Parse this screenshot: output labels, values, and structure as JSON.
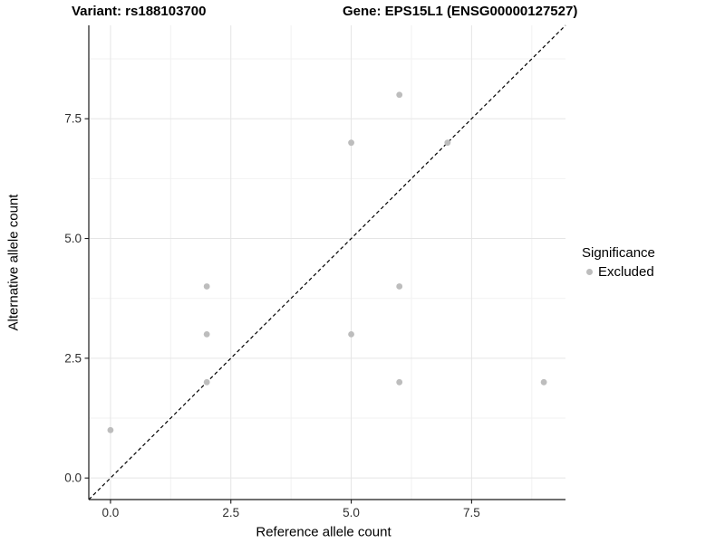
{
  "titles": {
    "variant": "Variant: rs188103700",
    "gene": "Gene: EPS15L1 (ENSG00000127527)"
  },
  "axes": {
    "x_label": "Reference allele count",
    "y_label": "Alternative allele count",
    "x_tick_labels": [
      "0.0",
      "2.5",
      "5.0",
      "7.5"
    ],
    "y_tick_labels": [
      "0.0",
      "2.5",
      "5.0",
      "7.5"
    ]
  },
  "legend": {
    "title": "Significance",
    "items": [
      {
        "label": "Excluded",
        "color": "#bdbdbd"
      }
    ]
  },
  "chart_data": {
    "type": "scatter",
    "title": "Variant: rs188103700 | Gene: EPS15L1 (ENSG00000127527)",
    "xlabel": "Reference allele count",
    "ylabel": "Alternative allele count",
    "xlim": [
      -0.45,
      9.45
    ],
    "ylim": [
      -0.45,
      9.45
    ],
    "x_ticks": [
      0,
      2.5,
      5,
      7.5
    ],
    "y_ticks": [
      0,
      2.5,
      5,
      7.5
    ],
    "x_minor_ticks": [
      1.25,
      3.75,
      6.25,
      8.75
    ],
    "y_minor_ticks": [
      1.25,
      3.75,
      6.25,
      8.75
    ],
    "grid": "major+minor",
    "legend_position": "right",
    "series": [
      {
        "name": "Excluded",
        "color": "#bdbdbd",
        "points": [
          [
            0,
            1
          ],
          [
            2,
            2
          ],
          [
            2,
            3
          ],
          [
            2,
            4
          ],
          [
            5,
            3
          ],
          [
            5,
            7
          ],
          [
            6,
            2
          ],
          [
            6,
            4
          ],
          [
            6,
            8
          ],
          [
            7,
            7
          ],
          [
            9,
            2
          ]
        ]
      }
    ],
    "identity_line": {
      "style": "dashed",
      "color": "#000000",
      "from": [
        -0.45,
        -0.45
      ],
      "to": [
        9.45,
        9.45
      ]
    }
  },
  "colors": {
    "background": "#ffffff",
    "grid_major": "#e5e5e5",
    "grid_minor": "#f2f2f2",
    "axis_line": "#1a1a1a",
    "tick_label": "#303030",
    "point": "#bdbdbd"
  }
}
